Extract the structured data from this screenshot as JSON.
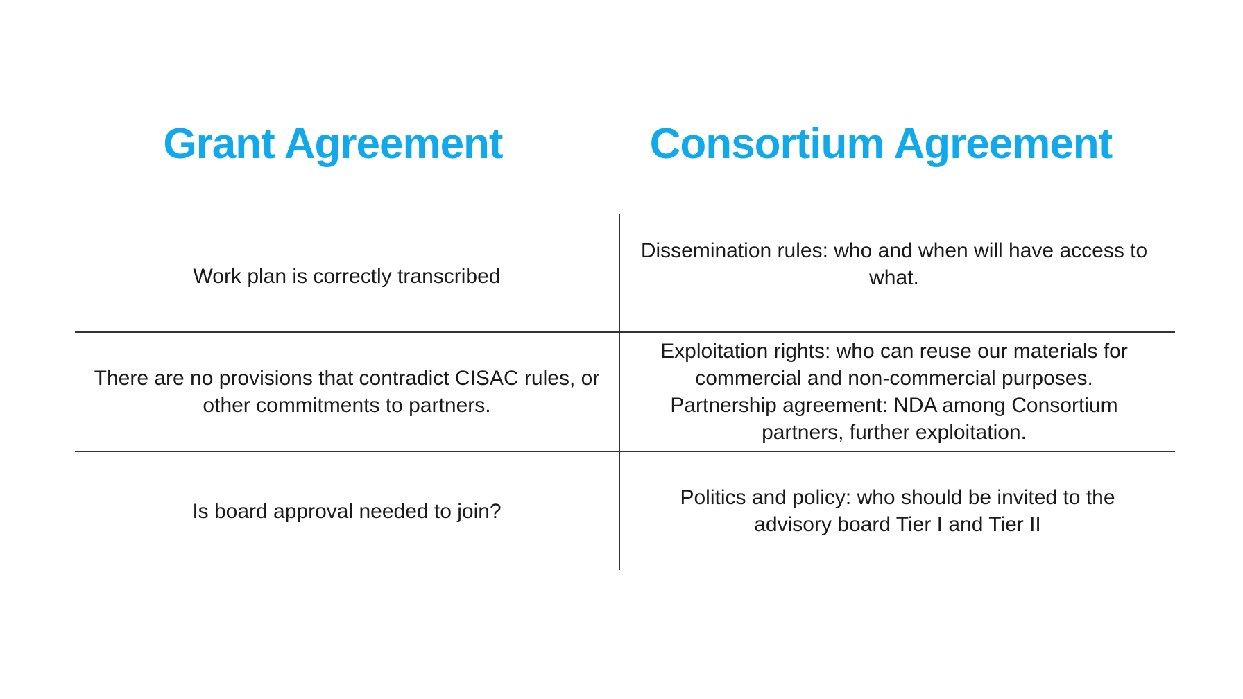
{
  "headings": {
    "left": "Grant Agreement",
    "right": "Consortium Agreement"
  },
  "colors": {
    "heading": "#12A9EA",
    "text": "#1a1a1a",
    "rule": "#333333",
    "background": "#ffffff"
  },
  "rows": [
    {
      "grant": "Work plan is correctly transcribed",
      "consortium": "Dissemination rules: who and when will have access to what."
    },
    {
      "grant": "There are no provisions that contradict CISAC rules, or other commitments to partners.",
      "consortium": "Exploitation rights: who can reuse our materials for commercial and non-commercial purposes.",
      "consortium_extra": "Partnership agreement: NDA among Consortium partners, further exploitation."
    },
    {
      "grant": "Is board approval needed to join?",
      "consortium": "Politics and policy: who should be invited to the advisory board Tier I and Tier II"
    }
  ]
}
